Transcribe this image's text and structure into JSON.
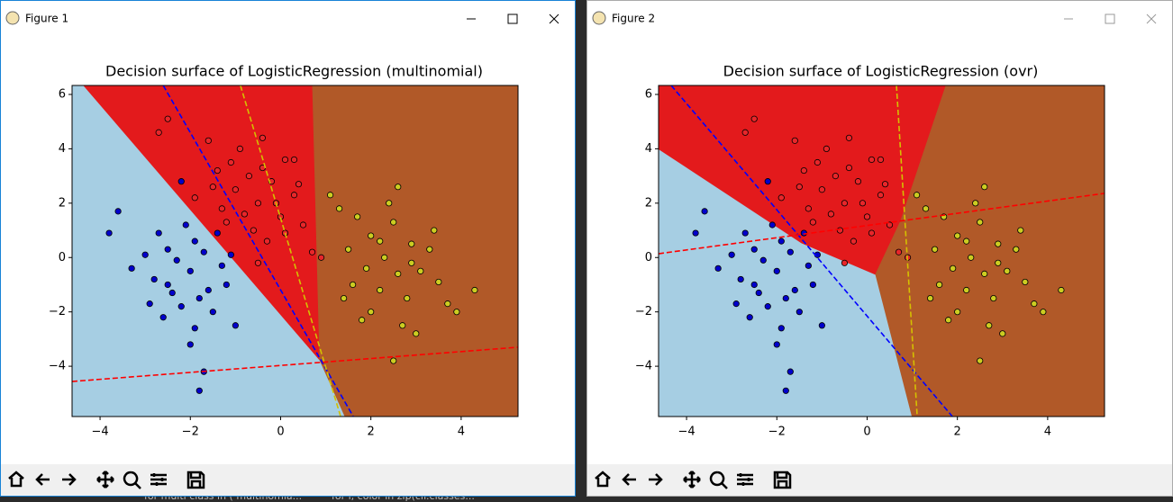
{
  "windows": [
    "Figure 1",
    "Figure 2"
  ],
  "background_text": [
    "for multi class in ( multinomia...",
    "for i, color in zip(clf.classes..."
  ],
  "chart_data": [
    {
      "type": "scatter",
      "title": "Decision surface of LogisticRegression (multinomial)",
      "xlim": [
        -4.62,
        5.26
      ],
      "ylim": [
        -5.85,
        6.33
      ],
      "xticks": [
        {
          "value": -4,
          "label": "−4"
        },
        {
          "value": -2,
          "label": "−2"
        },
        0,
        2,
        4
      ],
      "yticks": [
        {
          "value": -4,
          "label": "−4"
        },
        {
          "value": -2,
          "label": "−2"
        },
        0,
        2,
        4,
        6
      ],
      "regions": [
        {
          "color": "#a6cee3",
          "x": [
            -4.62,
            -4.36,
            0.87,
            1.43,
            -4.62
          ],
          "y": [
            6.33,
            6.33,
            -3.77,
            -5.85,
            -5.85
          ]
        },
        {
          "color": "#e31a1c",
          "x": [
            -4.36,
            0.71,
            0.87
          ],
          "y": [
            6.33,
            6.33,
            -3.77
          ]
        },
        {
          "color": "#b15928",
          "x": [
            0.71,
            5.26,
            5.26,
            1.43,
            0.87
          ],
          "y": [
            6.33,
            6.33,
            -5.85,
            -5.85,
            -3.77
          ]
        }
      ],
      "lines": [
        {
          "color": "#0000ff",
          "x": [
            -2.6,
            1.61
          ],
          "y": [
            6.33,
            -5.85
          ]
        },
        {
          "color": "#d4c000",
          "x": [
            -0.89,
            1.33
          ],
          "y": [
            6.33,
            -5.85
          ]
        },
        {
          "color": "#ff0000",
          "x": [
            -4.62,
            5.26
          ],
          "y": [
            -4.56,
            -3.3
          ]
        }
      ],
      "series": [
        {
          "color": "#0000cc",
          "x": [
            -2.0,
            -2.5,
            -1.6,
            -2.8,
            -1.9,
            -2.2,
            -1.3,
            -3.0,
            -2.4,
            -1.7,
            -2.1,
            -3.6,
            -2.6,
            -1.5,
            -1.2,
            -2.9,
            -2.3,
            -1.8,
            -3.3,
            -2.0,
            -1.4,
            -2.7,
            -1.9,
            -3.8,
            -2.2,
            -1.0,
            -1.7,
            -1.8,
            -2.5,
            -1.1
          ],
          "y": [
            -0.5,
            0.3,
            -1.2,
            -0.8,
            0.6,
            -1.8,
            -0.3,
            0.1,
            -1.3,
            0.2,
            1.2,
            1.7,
            -2.2,
            -2.0,
            -1.0,
            -1.7,
            -0.1,
            -1.5,
            -0.4,
            -3.2,
            0.9,
            0.9,
            -2.6,
            0.9,
            2.8,
            -2.5,
            -4.2,
            -4.9,
            -1.0,
            0.1
          ]
        },
        {
          "color": "#e8262a",
          "x": [
            -0.5,
            -1.0,
            0.0,
            -0.7,
            -0.2,
            -1.3,
            0.3,
            -0.6,
            -1.1,
            0.5,
            -0.3,
            -0.9,
            -1.5,
            0.1,
            -2.5,
            -2.7,
            -0.4,
            0.3,
            -1.9,
            0.7,
            -0.8,
            0.1,
            -1.4,
            -0.1,
            0.4,
            -0.5,
            -1.6,
            0.9,
            -1.2,
            -0.4
          ],
          "y": [
            2.0,
            2.5,
            1.5,
            3.0,
            2.8,
            1.8,
            2.3,
            1.0,
            3.5,
            1.2,
            0.6,
            4.0,
            2.6,
            3.6,
            5.1,
            4.6,
            4.4,
            3.6,
            2.2,
            0.2,
            1.6,
            0.9,
            3.2,
            2.0,
            2.7,
            -0.2,
            4.3,
            0.0,
            1.3,
            3.3
          ]
        },
        {
          "color": "#cccc22",
          "x": [
            2.3,
            2.0,
            2.6,
            1.7,
            2.9,
            2.2,
            1.5,
            3.1,
            2.5,
            1.9,
            2.8,
            2.4,
            1.3,
            3.5,
            2.0,
            2.7,
            3.3,
            1.6,
            4.3,
            3.7,
            2.5,
            3.0,
            1.1,
            2.6,
            3.9,
            1.4,
            2.2,
            2.9,
            3.4,
            1.8
          ],
          "y": [
            0.0,
            0.8,
            -0.6,
            1.5,
            0.5,
            -1.2,
            0.3,
            -0.5,
            1.3,
            -0.4,
            -1.5,
            2.0,
            1.8,
            -0.9,
            -2.0,
            -2.5,
            0.3,
            -1.0,
            -1.2,
            -1.7,
            -3.8,
            -2.8,
            2.3,
            2.6,
            -2.0,
            -1.5,
            0.6,
            -0.2,
            1.0,
            -2.3
          ]
        }
      ]
    },
    {
      "type": "scatter",
      "title": "Decision surface of LogisticRegression (ovr)",
      "xlim": [
        -4.62,
        5.26
      ],
      "ylim": [
        -5.85,
        6.33
      ],
      "xticks": [
        {
          "value": -4,
          "label": "−4"
        },
        {
          "value": -2,
          "label": "−2"
        },
        0,
        2,
        4
      ],
      "yticks": [
        {
          "value": -4,
          "label": "−4"
        },
        {
          "value": -2,
          "label": "−2"
        },
        0,
        2,
        4,
        6
      ],
      "regions": [
        {
          "color": "#a6cee3",
          "x": [
            -4.62,
            -1.45,
            0.19,
            1.0,
            -4.62
          ],
          "y": [
            4.0,
            0.54,
            -0.62,
            -5.85,
            -5.85
          ]
        },
        {
          "color": "#e31a1c",
          "x": [
            -4.62,
            1.75,
            0.75,
            0.19,
            -1.45,
            -4.62
          ],
          "y": [
            6.33,
            6.33,
            1.36,
            -0.62,
            0.54,
            4.0
          ]
        },
        {
          "color": "#b15928",
          "x": [
            1.75,
            5.26,
            5.26,
            1.0,
            0.19,
            0.75
          ],
          "y": [
            6.33,
            6.33,
            -5.85,
            -5.85,
            -0.62,
            1.36
          ]
        }
      ],
      "lines": [
        {
          "color": "#0000ff",
          "x": [
            -4.34,
            1.89
          ],
          "y": [
            6.33,
            -5.85
          ]
        },
        {
          "color": "#d4c000",
          "x": [
            0.65,
            1.11
          ],
          "y": [
            6.33,
            -5.85
          ]
        },
        {
          "color": "#ff0000",
          "x": [
            -4.62,
            5.26
          ],
          "y": [
            0.14,
            2.36
          ]
        }
      ],
      "series": [
        {
          "color": "#0000cc",
          "x": [
            -2.0,
            -2.5,
            -1.6,
            -2.8,
            -1.9,
            -2.2,
            -1.3,
            -3.0,
            -2.4,
            -1.7,
            -2.1,
            -3.6,
            -2.6,
            -1.5,
            -1.2,
            -2.9,
            -2.3,
            -1.8,
            -3.3,
            -2.0,
            -1.4,
            -2.7,
            -1.9,
            -3.8,
            -2.2,
            -1.0,
            -1.7,
            -1.8,
            -2.5,
            -1.1
          ],
          "y": [
            -0.5,
            0.3,
            -1.2,
            -0.8,
            0.6,
            -1.8,
            -0.3,
            0.1,
            -1.3,
            0.2,
            1.2,
            1.7,
            -2.2,
            -2.0,
            -1.0,
            -1.7,
            -0.1,
            -1.5,
            -0.4,
            -3.2,
            0.9,
            0.9,
            -2.6,
            0.9,
            2.8,
            -2.5,
            -4.2,
            -4.9,
            -1.0,
            0.1
          ]
        },
        {
          "color": "#e8262a",
          "x": [
            -0.5,
            -1.0,
            0.0,
            -0.7,
            -0.2,
            -1.3,
            0.3,
            -0.6,
            -1.1,
            0.5,
            -0.3,
            -0.9,
            -1.5,
            0.1,
            -2.5,
            -2.7,
            -0.4,
            0.3,
            -1.9,
            0.7,
            -0.8,
            0.1,
            -1.4,
            -0.1,
            0.4,
            -0.5,
            -1.6,
            0.9,
            -1.2,
            -0.4
          ],
          "y": [
            2.0,
            2.5,
            1.5,
            3.0,
            2.8,
            1.8,
            2.3,
            1.0,
            3.5,
            1.2,
            0.6,
            4.0,
            2.6,
            3.6,
            5.1,
            4.6,
            4.4,
            3.6,
            2.2,
            0.2,
            1.6,
            0.9,
            3.2,
            2.0,
            2.7,
            -0.2,
            4.3,
            0.0,
            1.3,
            3.3
          ]
        },
        {
          "color": "#cccc22",
          "x": [
            2.3,
            2.0,
            2.6,
            1.7,
            2.9,
            2.2,
            1.5,
            3.1,
            2.5,
            1.9,
            2.8,
            2.4,
            1.3,
            3.5,
            2.0,
            2.7,
            3.3,
            1.6,
            4.3,
            3.7,
            2.5,
            3.0,
            1.1,
            2.6,
            3.9,
            1.4,
            2.2,
            2.9,
            3.4,
            1.8
          ],
          "y": [
            0.0,
            0.8,
            -0.6,
            1.5,
            0.5,
            -1.2,
            0.3,
            -0.5,
            1.3,
            -0.4,
            -1.5,
            2.0,
            1.8,
            -0.9,
            -2.0,
            -2.5,
            0.3,
            -1.0,
            -1.2,
            -1.7,
            -3.8,
            -2.8,
            2.3,
            2.6,
            -2.0,
            -1.5,
            0.6,
            -0.2,
            1.0,
            -2.3
          ]
        }
      ]
    }
  ]
}
